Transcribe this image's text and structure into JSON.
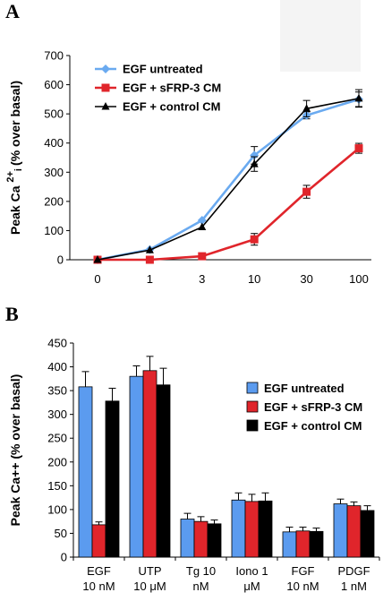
{
  "panels": [
    "A",
    "B"
  ],
  "chart_data": [
    {
      "type": "line",
      "panel": "A",
      "xlabel": "",
      "ylabel": "Peak Ca",
      "ylabel_sup": "2+",
      "ylabel_sub": "i",
      "ylabel_rest": "(% over basal)",
      "categories": [
        "0",
        "1",
        "3",
        "10",
        "30",
        "100"
      ],
      "ylim": [
        0,
        700
      ],
      "yticks": [
        "0",
        "100",
        "200",
        "300",
        "400",
        "500",
        "600",
        "700"
      ],
      "legend_position": "top-left",
      "series": [
        {
          "name": "EGF untreated",
          "color": "#6aaaf0",
          "marker": "diamond",
          "values": [
            0,
            35,
            135,
            358,
            495,
            550
          ],
          "errors": [
            0,
            0,
            0,
            30,
            12,
            25
          ]
        },
        {
          "name": "EGF + sFRP-3 CM",
          "color": "#e0252b",
          "marker": "square",
          "values": [
            0,
            0,
            12,
            70,
            233,
            382
          ],
          "errors": [
            0,
            0,
            0,
            20,
            22,
            17
          ]
        },
        {
          "name": "EGF + control CM",
          "color": "#000000",
          "marker": "triangle",
          "values": [
            0,
            33,
            112,
            328,
            518,
            553
          ],
          "errors": [
            0,
            0,
            0,
            25,
            28,
            30
          ]
        }
      ]
    },
    {
      "type": "bar",
      "panel": "B",
      "xlabel": "",
      "ylabel": "Peak Ca++ (% over basal)",
      "categories": [
        [
          "EGF",
          "10 nM"
        ],
        [
          "UTP",
          "10 μM"
        ],
        [
          "Tg 10",
          "nM"
        ],
        [
          "Iono 1",
          "μM"
        ],
        [
          "FGF",
          "10 nM"
        ],
        [
          "PDGF",
          "1 nM"
        ]
      ],
      "ylim": [
        0,
        450
      ],
      "yticks": [
        "0",
        "50",
        "100",
        "150",
        "200",
        "250",
        "300",
        "350",
        "400",
        "450"
      ],
      "legend_position": "right",
      "series": [
        {
          "name": "EGF untreated",
          "color": "#5b9bef",
          "values": [
            358,
            380,
            80,
            120,
            53,
            112
          ],
          "errors": [
            32,
            22,
            12,
            15,
            10,
            10
          ]
        },
        {
          "name": "EGF + sFRP-3 CM",
          "color": "#e0252b",
          "values": [
            68,
            392,
            75,
            117,
            55,
            108
          ],
          "errors": [
            6,
            30,
            10,
            15,
            8,
            8
          ]
        },
        {
          "name": "EGF + control CM",
          "color": "#000000",
          "values": [
            328,
            362,
            70,
            118,
            54,
            98
          ],
          "errors": [
            27,
            35,
            8,
            17,
            7,
            10
          ]
        }
      ]
    }
  ]
}
